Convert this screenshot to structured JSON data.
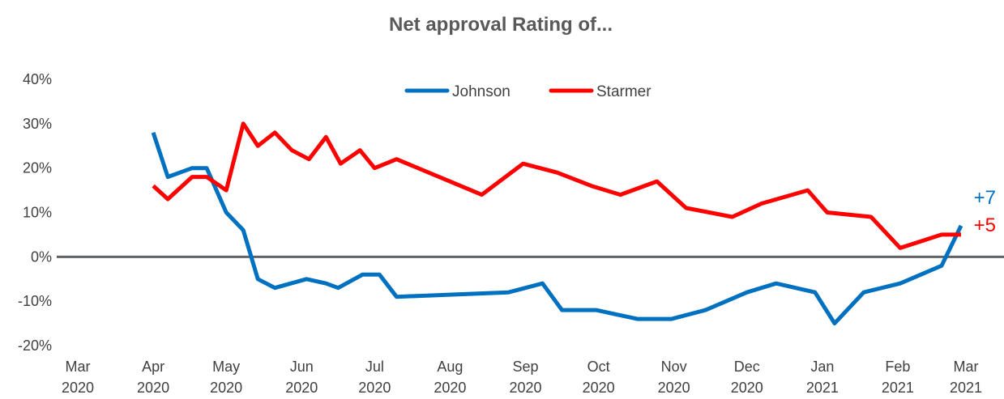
{
  "chart_data": {
    "type": "line",
    "title": "Net approval Rating of...",
    "xlabel": "",
    "ylabel": "",
    "ylim": [
      -20,
      40
    ],
    "yticks": [
      -20,
      -10,
      0,
      10,
      20,
      30,
      40
    ],
    "ytick_format": "%",
    "x_domain": [
      "2020-03-01",
      "2021-03-01"
    ],
    "xticks": [
      {
        "date": "2020-03-01",
        "month": "Mar",
        "year": "2020"
      },
      {
        "date": "2020-04-01",
        "month": "Apr",
        "year": "2020"
      },
      {
        "date": "2020-05-01",
        "month": "May",
        "year": "2020"
      },
      {
        "date": "2020-06-01",
        "month": "Jun",
        "year": "2020"
      },
      {
        "date": "2020-07-01",
        "month": "Jul",
        "year": "2020"
      },
      {
        "date": "2020-08-01",
        "month": "Aug",
        "year": "2020"
      },
      {
        "date": "2020-09-01",
        "month": "Sep",
        "year": "2020"
      },
      {
        "date": "2020-10-01",
        "month": "Oct",
        "year": "2020"
      },
      {
        "date": "2020-11-01",
        "month": "Nov",
        "year": "2020"
      },
      {
        "date": "2020-12-01",
        "month": "Dec",
        "year": "2020"
      },
      {
        "date": "2021-01-01",
        "month": "Jan",
        "year": "2021"
      },
      {
        "date": "2021-02-01",
        "month": "Feb",
        "year": "2021"
      },
      {
        "date": "2021-03-01",
        "month": "Mar",
        "year": "2021"
      }
    ],
    "legend_position": "top-center",
    "zero_line": true,
    "series": [
      {
        "name": "Johnson",
        "color": "#0070C0",
        "end_label": "+7",
        "points": [
          {
            "x": "2020-04-01",
            "y": 28
          },
          {
            "x": "2020-04-07",
            "y": 18
          },
          {
            "x": "2020-04-17",
            "y": 20
          },
          {
            "x": "2020-04-23",
            "y": 20
          },
          {
            "x": "2020-05-01",
            "y": 10
          },
          {
            "x": "2020-05-08",
            "y": 6
          },
          {
            "x": "2020-05-14",
            "y": -5
          },
          {
            "x": "2020-05-21",
            "y": -7
          },
          {
            "x": "2020-06-03",
            "y": -5
          },
          {
            "x": "2020-06-11",
            "y": -6
          },
          {
            "x": "2020-06-16",
            "y": -7
          },
          {
            "x": "2020-06-26",
            "y": -4
          },
          {
            "x": "2020-07-03",
            "y": -4
          },
          {
            "x": "2020-07-10",
            "y": -9
          },
          {
            "x": "2020-08-25",
            "y": -8
          },
          {
            "x": "2020-09-08",
            "y": -6
          },
          {
            "x": "2020-09-16",
            "y": -12
          },
          {
            "x": "2020-09-30",
            "y": -12
          },
          {
            "x": "2020-10-17",
            "y": -14
          },
          {
            "x": "2020-10-31",
            "y": -14
          },
          {
            "x": "2020-11-14",
            "y": -12
          },
          {
            "x": "2020-12-01",
            "y": -8
          },
          {
            "x": "2020-12-13",
            "y": -6
          },
          {
            "x": "2020-12-29",
            "y": -8
          },
          {
            "x": "2021-01-06",
            "y": -15
          },
          {
            "x": "2021-01-18",
            "y": -8
          },
          {
            "x": "2021-02-02",
            "y": -6
          },
          {
            "x": "2021-02-19",
            "y": -2
          },
          {
            "x": "2021-02-27",
            "y": 7
          }
        ]
      },
      {
        "name": "Starmer",
        "color": "#FF0000",
        "end_label": "+5",
        "points": [
          {
            "x": "2020-04-01",
            "y": 16
          },
          {
            "x": "2020-04-07",
            "y": 13
          },
          {
            "x": "2020-04-17",
            "y": 18
          },
          {
            "x": "2020-04-23",
            "y": 18
          },
          {
            "x": "2020-05-01",
            "y": 15
          },
          {
            "x": "2020-05-08",
            "y": 30
          },
          {
            "x": "2020-05-14",
            "y": 25
          },
          {
            "x": "2020-05-21",
            "y": 28
          },
          {
            "x": "2020-05-28",
            "y": 24
          },
          {
            "x": "2020-06-04",
            "y": 22
          },
          {
            "x": "2020-06-11",
            "y": 27
          },
          {
            "x": "2020-06-17",
            "y": 21
          },
          {
            "x": "2020-06-25",
            "y": 24
          },
          {
            "x": "2020-07-01",
            "y": 20
          },
          {
            "x": "2020-07-10",
            "y": 22
          },
          {
            "x": "2020-08-14",
            "y": 14
          },
          {
            "x": "2020-08-31",
            "y": 21
          },
          {
            "x": "2020-09-14",
            "y": 19
          },
          {
            "x": "2020-09-28",
            "y": 16
          },
          {
            "x": "2020-10-10",
            "y": 14
          },
          {
            "x": "2020-10-25",
            "y": 17
          },
          {
            "x": "2020-11-06",
            "y": 11
          },
          {
            "x": "2020-11-25",
            "y": 9
          },
          {
            "x": "2020-12-07",
            "y": 12
          },
          {
            "x": "2020-12-26",
            "y": 15
          },
          {
            "x": "2021-01-03",
            "y": 10
          },
          {
            "x": "2021-01-21",
            "y": 9
          },
          {
            "x": "2021-02-02",
            "y": 2
          },
          {
            "x": "2021-02-19",
            "y": 5
          },
          {
            "x": "2021-02-27",
            "y": 5
          }
        ]
      }
    ]
  }
}
